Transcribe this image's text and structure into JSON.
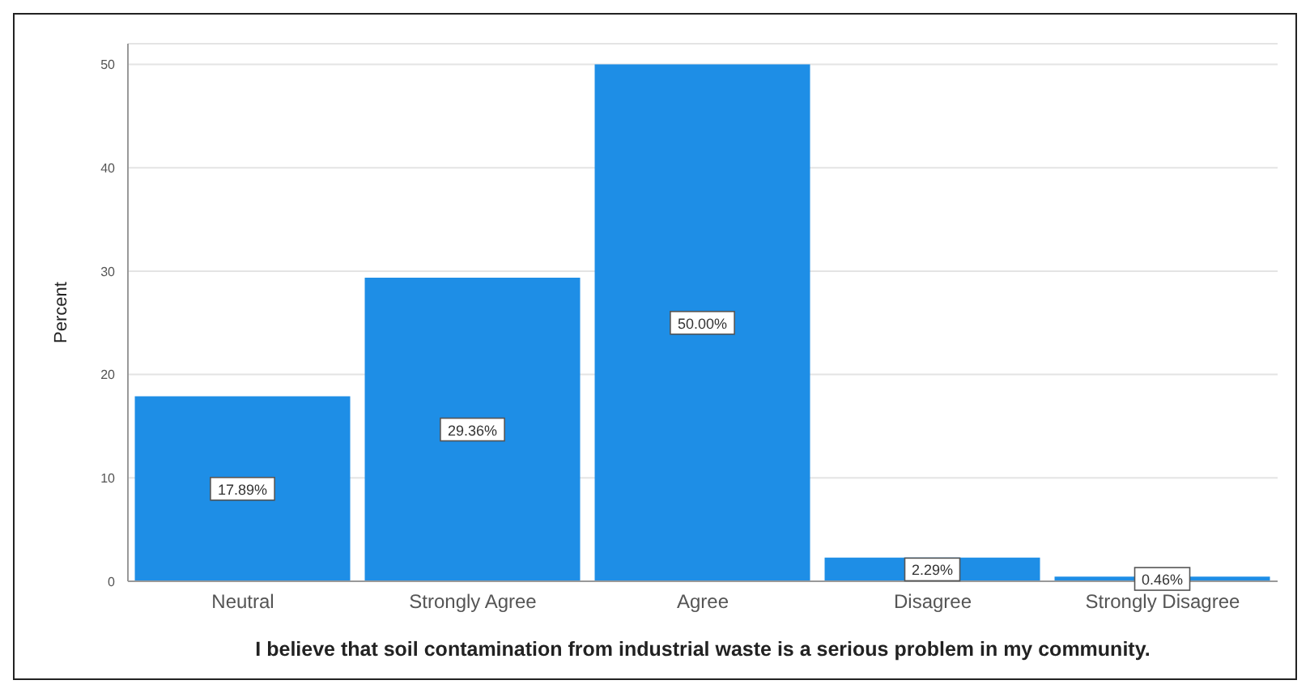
{
  "chart_data": {
    "type": "bar",
    "xlabel": "I believe that soil contamination from industrial waste is a serious problem in my community.",
    "ylabel": "Percent",
    "categories": [
      "Neutral",
      "Strongly Agree",
      "Agree",
      "Disagree",
      "Strongly Disagree"
    ],
    "values": [
      17.89,
      29.36,
      50.0,
      2.29,
      0.46
    ],
    "value_labels": [
      "17.89%",
      "29.36%",
      "50.00%",
      "2.29%",
      "0.46%"
    ],
    "color": "#1e8ee6",
    "ylim": [
      0,
      52
    ],
    "yticks": [
      0,
      10,
      20,
      30,
      40,
      50
    ],
    "grid": "y"
  }
}
